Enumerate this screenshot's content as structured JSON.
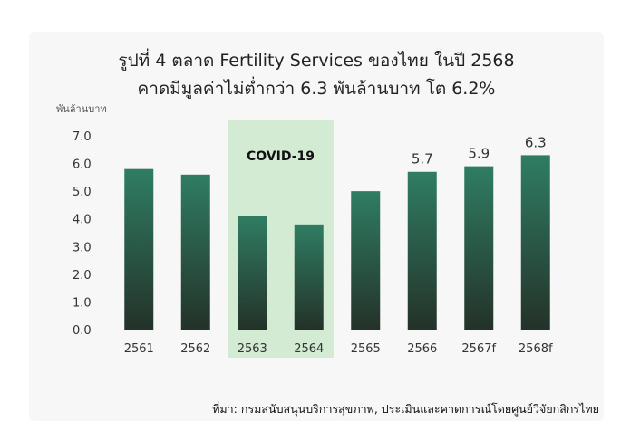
{
  "chart_data": {
    "type": "bar",
    "title_line1": "รูปที่ 4 ตลาด Fertility Services ของไทย ในปี 2568",
    "title_line2": "คาดมีมูลค่าไม่ต่ำกว่า 6.3 พันล้านบาท โต 6.2%",
    "ylabel": "พันล้านบาท",
    "xlabel": "",
    "categories": [
      "2561",
      "2562",
      "2563",
      "2564",
      "2565",
      "2566",
      "2567f",
      "2568f"
    ],
    "values": [
      5.8,
      5.6,
      4.1,
      3.8,
      5.0,
      5.7,
      5.9,
      6.3
    ],
    "data_labels": [
      "",
      "",
      "",
      "",
      "",
      "5.7",
      "5.9",
      "6.3"
    ],
    "ylim": [
      0,
      7
    ],
    "yticks": [
      "0.0",
      "1.0",
      "2.0",
      "3.0",
      "4.0",
      "5.0",
      "6.0",
      "7.0"
    ],
    "grid": false,
    "highlight": {
      "label": "COVID-19",
      "categories": [
        "2563",
        "2564"
      ],
      "color": "#d3ead3"
    },
    "bar_gradient": {
      "top": "#2f7d63",
      "bottom": "#243229"
    },
    "source": "ที่มา: กรมสนับสนุนบริการสุขภาพ, ประเมินและคาดการณ์โดยศูนย์วิจัยกสิกรไทย"
  }
}
